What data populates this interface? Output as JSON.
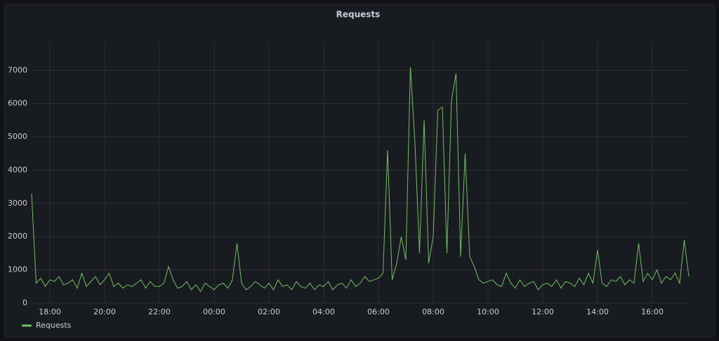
{
  "chart_data": {
    "type": "line",
    "title": "Requests",
    "categories": [
      null,
      null,
      null,
      null,
      "18:00",
      null,
      null,
      null,
      null,
      null,
      null,
      null,
      null,
      null,
      null,
      null,
      "20:00",
      null,
      null,
      null,
      null,
      null,
      null,
      null,
      null,
      null,
      null,
      null,
      "22:00",
      null,
      null,
      null,
      null,
      null,
      null,
      null,
      null,
      null,
      null,
      null,
      "00:00",
      null,
      null,
      null,
      null,
      null,
      null,
      null,
      null,
      null,
      null,
      null,
      "02:00",
      null,
      null,
      null,
      null,
      null,
      null,
      null,
      null,
      null,
      null,
      null,
      "04:00",
      null,
      null,
      null,
      null,
      null,
      null,
      null,
      null,
      null,
      null,
      null,
      "06:00",
      null,
      null,
      null,
      null,
      null,
      null,
      null,
      null,
      null,
      null,
      null,
      "08:00",
      null,
      null,
      null,
      null,
      null,
      null,
      null,
      null,
      null,
      null,
      null,
      "10:00",
      null,
      null,
      null,
      null,
      null,
      null,
      null,
      null,
      null,
      null,
      null,
      "12:00",
      null,
      null,
      null,
      null,
      null,
      null,
      null,
      null,
      null,
      null,
      null,
      "14:00",
      null,
      null,
      null,
      null,
      null,
      null,
      null,
      null,
      null,
      null,
      null,
      "16:00",
      null,
      null,
      null,
      null,
      null,
      null,
      null,
      null
    ],
    "series": [
      {
        "name": "Requests",
        "color": "#73bf69",
        "values": [
          3300,
          600,
          750,
          500,
          700,
          650,
          800,
          550,
          600,
          700,
          450,
          900,
          500,
          650,
          800,
          550,
          700,
          900,
          500,
          600,
          450,
          550,
          500,
          600,
          700,
          450,
          650,
          500,
          500,
          600,
          1100,
          700,
          450,
          500,
          650,
          400,
          550,
          350,
          600,
          500,
          400,
          550,
          600,
          450,
          700,
          1800,
          600,
          400,
          500,
          650,
          550,
          450,
          600,
          400,
          700,
          500,
          550,
          400,
          650,
          500,
          450,
          600,
          400,
          550,
          500,
          650,
          400,
          550,
          600,
          450,
          700,
          500,
          600,
          800,
          650,
          700,
          750,
          900,
          4600,
          700,
          1200,
          2000,
          1300,
          7100,
          4800,
          1500,
          5500,
          1200,
          2000,
          5800,
          5900,
          1500,
          6100,
          6900,
          1400,
          4500,
          1400,
          1100,
          700,
          600,
          650,
          700,
          550,
          500,
          900,
          600,
          450,
          700,
          500,
          600,
          650,
          400,
          550,
          600,
          500,
          700,
          450,
          650,
          600,
          500,
          750,
          550,
          900,
          600,
          1600,
          600,
          500,
          700,
          650,
          800,
          550,
          700,
          600,
          1800,
          650,
          900,
          700,
          1000,
          600,
          800,
          700,
          900,
          600,
          1900,
          800
        ]
      }
    ],
    "ylim": [
      0,
      7850
    ],
    "yticks": [
      0,
      1000,
      2000,
      3000,
      4000,
      5000,
      6000,
      7000
    ],
    "grid": true,
    "legend": "bottom-left"
  }
}
